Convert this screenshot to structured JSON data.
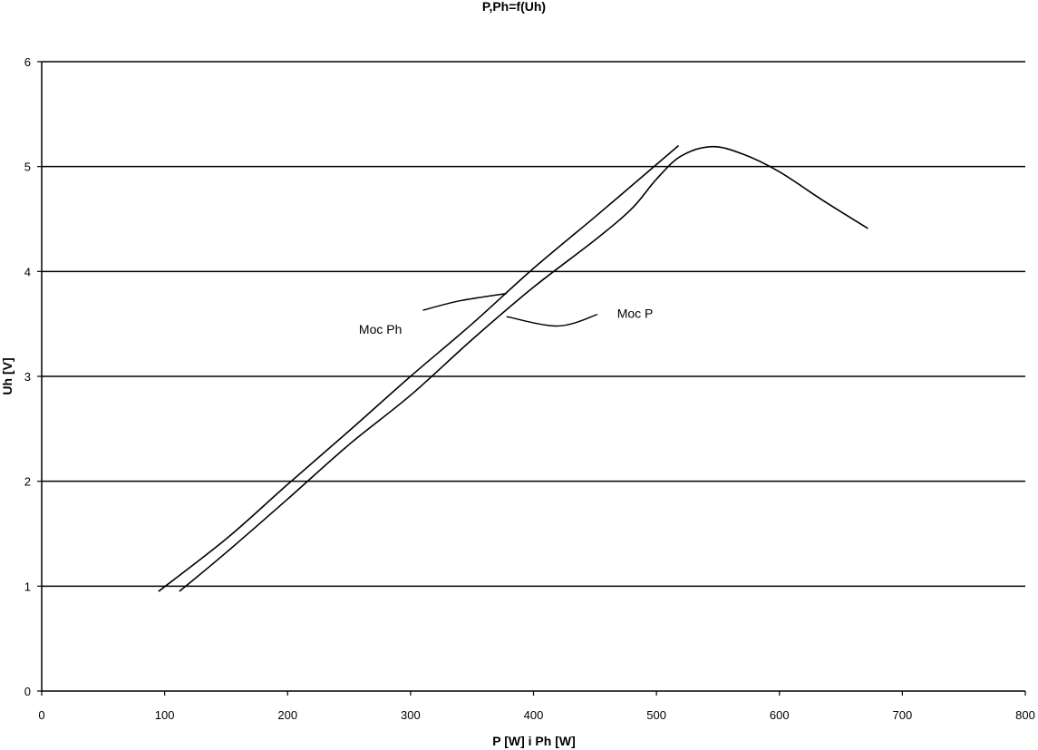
{
  "chart_data": {
    "type": "line",
    "title": "P,Ph=f(Uh)",
    "xlabel": "P [W] i Ph [W]",
    "ylabel": "Uh [V]",
    "xlim": [
      0,
      800
    ],
    "ylim": [
      0,
      6
    ],
    "x_ticks": [
      "0",
      "100",
      "200",
      "300",
      "400",
      "500",
      "600",
      "700",
      "800"
    ],
    "y_ticks": [
      "0",
      "1",
      "2",
      "3",
      "4",
      "5",
      "6"
    ],
    "grid": "horizontal",
    "series": [
      {
        "name": "Moc Ph",
        "points": [
          [
            95,
            0.95
          ],
          [
            150,
            1.45
          ],
          [
            200,
            1.97
          ],
          [
            250,
            2.48
          ],
          [
            300,
            3.0
          ],
          [
            350,
            3.5
          ],
          [
            400,
            4.03
          ],
          [
            450,
            4.52
          ],
          [
            500,
            5.02
          ],
          [
            518,
            5.2
          ]
        ]
      },
      {
        "name": "Moc P",
        "points": [
          [
            112,
            0.95
          ],
          [
            150,
            1.32
          ],
          [
            200,
            1.83
          ],
          [
            250,
            2.35
          ],
          [
            300,
            2.82
          ],
          [
            350,
            3.35
          ],
          [
            400,
            3.85
          ],
          [
            450,
            4.3
          ],
          [
            480,
            4.6
          ],
          [
            500,
            4.88
          ],
          [
            520,
            5.1
          ],
          [
            545,
            5.19
          ],
          [
            570,
            5.12
          ],
          [
            600,
            4.95
          ],
          [
            635,
            4.68
          ],
          [
            672,
            4.41
          ]
        ]
      }
    ],
    "annotations": [
      {
        "text": "Moc Ph",
        "series": "Moc Ph",
        "label_x": 258,
        "label_y": 3.45,
        "leader": [
          [
            310,
            3.63
          ],
          [
            340,
            3.72
          ],
          [
            378,
            3.79
          ]
        ]
      },
      {
        "text": "Moc P",
        "series": "Moc P",
        "label_x": 468,
        "label_y": 3.6,
        "leader": [
          [
            378,
            3.57
          ],
          [
            420,
            3.48
          ],
          [
            452,
            3.59
          ]
        ]
      }
    ]
  }
}
